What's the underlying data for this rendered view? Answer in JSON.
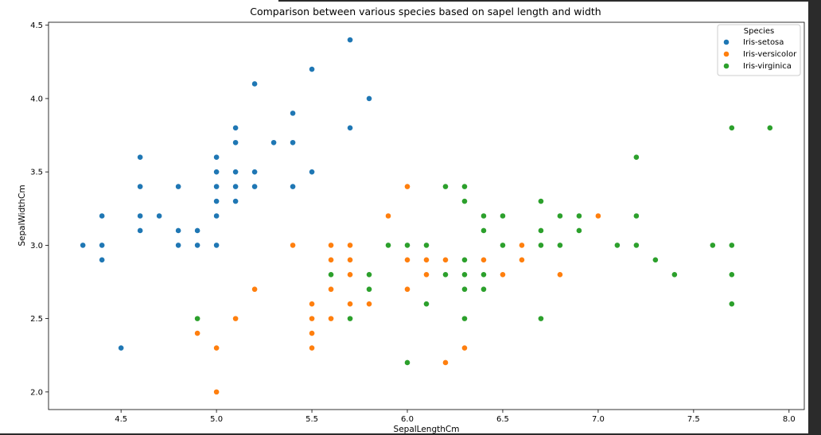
{
  "chart_data": {
    "type": "scatter",
    "title": "Comparison between various species based on sapel length and width",
    "xlabel": "SepalLengthCm",
    "ylabel": "SepalWidthCm",
    "xlim": [
      4.12,
      8.08
    ],
    "ylim": [
      1.88,
      4.52
    ],
    "xticks": [
      4.5,
      5.0,
      5.5,
      6.0,
      6.5,
      7.0,
      7.5,
      8.0
    ],
    "xtick_labels": [
      "4.5",
      "5.0",
      "5.5",
      "6.0",
      "6.5",
      "7.0",
      "7.5",
      "8.0"
    ],
    "yticks": [
      2.0,
      2.5,
      3.0,
      3.5,
      4.0,
      4.5
    ],
    "ytick_labels": [
      "2.0",
      "2.5",
      "3.0",
      "3.5",
      "4.0",
      "4.5"
    ],
    "grid": false,
    "legend": {
      "title": "Species",
      "placement": "top-right"
    },
    "series": [
      {
        "name": "Iris-setosa",
        "color": "#1f77b4",
        "points": [
          [
            5.1,
            3.5
          ],
          [
            4.9,
            3.0
          ],
          [
            4.7,
            3.2
          ],
          [
            4.6,
            3.1
          ],
          [
            5.0,
            3.6
          ],
          [
            5.4,
            3.9
          ],
          [
            4.6,
            3.4
          ],
          [
            5.0,
            3.4
          ],
          [
            4.4,
            2.9
          ],
          [
            4.9,
            3.1
          ],
          [
            5.4,
            3.7
          ],
          [
            4.8,
            3.4
          ],
          [
            4.8,
            3.0
          ],
          [
            4.3,
            3.0
          ],
          [
            5.8,
            4.0
          ],
          [
            5.7,
            4.4
          ],
          [
            5.4,
            3.9
          ],
          [
            5.1,
            3.5
          ],
          [
            5.7,
            3.8
          ],
          [
            5.1,
            3.8
          ],
          [
            5.4,
            3.4
          ],
          [
            5.1,
            3.7
          ],
          [
            4.6,
            3.6
          ],
          [
            5.1,
            3.3
          ],
          [
            4.8,
            3.4
          ],
          [
            5.0,
            3.0
          ],
          [
            5.0,
            3.4
          ],
          [
            5.2,
            3.5
          ],
          [
            5.2,
            3.4
          ],
          [
            4.7,
            3.2
          ],
          [
            4.8,
            3.1
          ],
          [
            5.4,
            3.4
          ],
          [
            5.2,
            4.1
          ],
          [
            5.5,
            4.2
          ],
          [
            4.9,
            3.1
          ],
          [
            5.0,
            3.2
          ],
          [
            5.5,
            3.5
          ],
          [
            4.9,
            3.1
          ],
          [
            4.4,
            3.0
          ],
          [
            5.1,
            3.4
          ],
          [
            5.0,
            3.5
          ],
          [
            4.5,
            2.3
          ],
          [
            4.4,
            3.2
          ],
          [
            5.0,
            3.5
          ],
          [
            5.1,
            3.8
          ],
          [
            4.8,
            3.0
          ],
          [
            5.1,
            3.8
          ],
          [
            4.6,
            3.2
          ],
          [
            5.3,
            3.7
          ],
          [
            5.0,
            3.3
          ]
        ]
      },
      {
        "name": "Iris-versicolor",
        "color": "#ff7f0e",
        "points": [
          [
            7.0,
            3.2
          ],
          [
            6.4,
            3.2
          ],
          [
            6.9,
            3.1
          ],
          [
            5.5,
            2.3
          ],
          [
            6.5,
            2.8
          ],
          [
            5.7,
            2.8
          ],
          [
            6.3,
            3.3
          ],
          [
            4.9,
            2.4
          ],
          [
            6.6,
            2.9
          ],
          [
            5.2,
            2.7
          ],
          [
            5.0,
            2.0
          ],
          [
            5.9,
            3.0
          ],
          [
            6.0,
            2.2
          ],
          [
            6.1,
            2.9
          ],
          [
            5.6,
            2.9
          ],
          [
            6.7,
            3.1
          ],
          [
            5.6,
            3.0
          ],
          [
            5.8,
            2.7
          ],
          [
            6.2,
            2.2
          ],
          [
            5.6,
            2.5
          ],
          [
            5.9,
            3.2
          ],
          [
            6.1,
            2.8
          ],
          [
            6.3,
            2.5
          ],
          [
            6.1,
            2.8
          ],
          [
            6.4,
            2.9
          ],
          [
            6.6,
            3.0
          ],
          [
            6.8,
            2.8
          ],
          [
            6.7,
            3.0
          ],
          [
            6.0,
            2.9
          ],
          [
            5.7,
            2.6
          ],
          [
            5.5,
            2.4
          ],
          [
            5.5,
            2.4
          ],
          [
            5.8,
            2.7
          ],
          [
            6.0,
            2.7
          ],
          [
            5.4,
            3.0
          ],
          [
            6.0,
            3.4
          ],
          [
            6.7,
            3.1
          ],
          [
            6.3,
            2.3
          ],
          [
            5.6,
            3.0
          ],
          [
            5.5,
            2.5
          ],
          [
            5.5,
            2.6
          ],
          [
            6.1,
            3.0
          ],
          [
            5.8,
            2.6
          ],
          [
            5.0,
            2.3
          ],
          [
            5.6,
            2.7
          ],
          [
            5.7,
            3.0
          ],
          [
            5.7,
            2.9
          ],
          [
            6.2,
            2.9
          ],
          [
            5.1,
            2.5
          ],
          [
            5.7,
            2.8
          ]
        ]
      },
      {
        "name": "Iris-virginica",
        "color": "#2ca02c",
        "points": [
          [
            6.3,
            3.3
          ],
          [
            5.8,
            2.7
          ],
          [
            7.1,
            3.0
          ],
          [
            6.3,
            2.9
          ],
          [
            6.5,
            3.0
          ],
          [
            7.6,
            3.0
          ],
          [
            4.9,
            2.5
          ],
          [
            7.3,
            2.9
          ],
          [
            6.7,
            2.5
          ],
          [
            7.2,
            3.6
          ],
          [
            6.5,
            3.2
          ],
          [
            6.4,
            2.7
          ],
          [
            6.8,
            3.0
          ],
          [
            5.7,
            2.5
          ],
          [
            5.8,
            2.8
          ],
          [
            6.4,
            3.2
          ],
          [
            6.5,
            3.0
          ],
          [
            7.7,
            3.8
          ],
          [
            7.7,
            2.6
          ],
          [
            6.0,
            2.2
          ],
          [
            6.9,
            3.2
          ],
          [
            5.6,
            2.8
          ],
          [
            7.7,
            2.8
          ],
          [
            6.3,
            2.7
          ],
          [
            6.7,
            3.3
          ],
          [
            7.2,
            3.2
          ],
          [
            6.2,
            2.8
          ],
          [
            6.1,
            3.0
          ],
          [
            6.4,
            2.8
          ],
          [
            7.2,
            3.0
          ],
          [
            7.4,
            2.8
          ],
          [
            7.9,
            3.8
          ],
          [
            6.4,
            2.8
          ],
          [
            6.3,
            2.8
          ],
          [
            6.1,
            2.6
          ],
          [
            7.7,
            3.0
          ],
          [
            6.3,
            3.4
          ],
          [
            6.4,
            3.1
          ],
          [
            6.0,
            3.0
          ],
          [
            6.9,
            3.1
          ],
          [
            6.7,
            3.1
          ],
          [
            6.9,
            3.1
          ],
          [
            5.8,
            2.7
          ],
          [
            6.8,
            3.2
          ],
          [
            6.7,
            3.3
          ],
          [
            6.7,
            3.0
          ],
          [
            6.3,
            2.5
          ],
          [
            6.5,
            3.0
          ],
          [
            6.2,
            3.4
          ],
          [
            5.9,
            3.0
          ]
        ]
      }
    ]
  }
}
